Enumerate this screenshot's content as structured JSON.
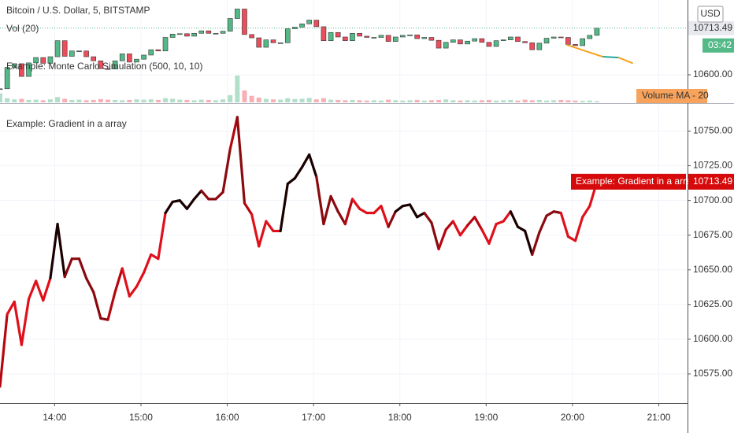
{
  "chart_data": [
    {
      "type": "candlestick",
      "title": "Bitcoin / U.S. Dollar, 5, BITSTAMP",
      "indicators": [
        "Vol (20)",
        "Example: Monte Carlo Simulation (500, 10, 10)"
      ],
      "volume_ma_label": "Volume MA - 20",
      "currency": "USD",
      "countdown": "03:42",
      "up_color": "#53b987",
      "down_color": "#eb4d5c",
      "close": [
        10566,
        10618,
        10627,
        10596,
        10629,
        10642,
        10628,
        10644,
        10683,
        10645,
        10658,
        10658,
        10644,
        10634,
        10615,
        10614,
        10634,
        10651,
        10631,
        10638,
        10648,
        10661,
        10658,
        10691,
        10699,
        10700,
        10694,
        10701,
        10707,
        10701,
        10701,
        10706,
        10737,
        10760,
        10698,
        10690,
        10667,
        10685,
        10678,
        10678,
        10712,
        10716,
        10724,
        10733,
        10717,
        10683,
        10703,
        10692,
        10683,
        10701,
        10694,
        10691,
        10691,
        10696,
        10681,
        10692,
        10696,
        10697,
        10688,
        10691,
        10684,
        10665,
        10679,
        10685,
        10675,
        10682,
        10688,
        10679,
        10669,
        10683,
        10685,
        10692,
        10681,
        10678,
        10661,
        10677,
        10689,
        10692,
        10691,
        10674,
        10671,
        10688,
        10696,
        10713.49
      ],
      "volume": [
        30,
        14,
        10,
        12,
        8,
        9,
        7,
        10,
        18,
        12,
        8,
        9,
        7,
        8,
        11,
        9,
        8,
        7,
        8,
        10,
        9,
        10,
        8,
        14,
        12,
        9,
        8,
        7,
        9,
        8,
        7,
        10,
        24,
        90,
        40,
        22,
        16,
        12,
        10,
        9,
        14,
        11,
        12,
        15,
        10,
        14,
        9,
        8,
        7,
        8,
        7,
        6,
        7,
        6,
        9,
        7,
        6,
        7,
        8,
        6,
        7,
        8,
        10,
        7,
        6,
        7,
        6,
        7,
        8,
        6,
        7,
        8,
        6,
        9,
        7,
        8,
        6,
        7,
        8,
        7,
        6,
        5,
        6,
        4
      ],
      "projection": {
        "x": [
          1196,
          1221,
          1232,
          1242
        ],
        "values": [
          10673,
          10644,
          10642,
          10628
        ],
        "colors": [
          "#f7a21b",
          "#26a69a",
          "#f7a21b"
        ]
      },
      "ylim": [
        10533,
        10782
      ],
      "yticks": [
        {
          "value": 10600,
          "label": "10600.00"
        }
      ]
    },
    {
      "type": "line",
      "title": "Example: Gradient in a array",
      "x": [
        802,
        807,
        812,
        817,
        822,
        827,
        832,
        837,
        842,
        847,
        852,
        857,
        862,
        867,
        872,
        877,
        882,
        887,
        892,
        897,
        902,
        907,
        912,
        917,
        922,
        927,
        932,
        937,
        942,
        947,
        952,
        957,
        962,
        967,
        972,
        977,
        982,
        987,
        992,
        997,
        1002,
        1007,
        1012,
        1017,
        1022,
        1027,
        1032,
        1037,
        1042,
        1047,
        1052,
        1057,
        1062,
        1067,
        1072,
        1077,
        1082,
        1087,
        1092,
        1097,
        1102,
        1107,
        1112,
        1117,
        1122,
        1127,
        1132,
        1137,
        1142,
        1147,
        1152,
        1157,
        1162,
        1167,
        1172,
        1177,
        1182,
        1187,
        1192,
        1197,
        1202,
        1207,
        1212,
        1217
      ],
      "series": [
        {
          "name": "Example: Gradient in a array",
          "tag_color": "#d60a0a",
          "values": [
            10566,
            10618,
            10627,
            10596,
            10629,
            10642,
            10628,
            10644,
            10683,
            10645,
            10658,
            10658,
            10644,
            10634,
            10615,
            10614,
            10634,
            10651,
            10631,
            10638,
            10648,
            10661,
            10658,
            10691,
            10699,
            10700,
            10694,
            10701,
            10707,
            10701,
            10701,
            10706,
            10737,
            10760,
            10698,
            10690,
            10667,
            10685,
            10678,
            10678,
            10712,
            10716,
            10724,
            10733,
            10717,
            10683,
            10703,
            10692,
            10683,
            10701,
            10694,
            10691,
            10691,
            10696,
            10681,
            10692,
            10696,
            10697,
            10688,
            10691,
            10684,
            10665,
            10679,
            10685,
            10675,
            10682,
            10688,
            10679,
            10669,
            10683,
            10685,
            10692,
            10681,
            10678,
            10661,
            10677,
            10689,
            10692,
            10691,
            10674,
            10671,
            10688,
            10696,
            10713.49
          ],
          "colors": [
            "#8a0a10",
            "#b5070f",
            "#e0101a",
            "#e0101a",
            "#e0101a",
            "#e0101a",
            "#e0101a",
            "#e0101a",
            "#1a0000",
            "#1a0000",
            "#8a0a10",
            "#8a0a10",
            "#8a0a10",
            "#8a0a10",
            "#8a0a10",
            "#8a0a10",
            "#b5070f",
            "#b5070f",
            "#e0101a",
            "#e0101a",
            "#e0101a",
            "#e0101a",
            "#e0101a",
            "#e0101a",
            "#1a0000",
            "#1a0000",
            "#1a0000",
            "#1a0000",
            "#1a0000",
            "#8a0a10",
            "#8a0a10",
            "#8a0a10",
            "#8a0a10",
            "#b5070f",
            "#8a0a10",
            "#b5070f",
            "#e0101a",
            "#e0101a",
            "#e0101a",
            "#e0101a",
            "#1a0000",
            "#1a0000",
            "#1a0000",
            "#1a0000",
            "#1a0000",
            "#8a0a10",
            "#8a0a10",
            "#8a0a10",
            "#8a0a10",
            "#b5070f",
            "#e0101a",
            "#e0101a",
            "#e0101a",
            "#e0101a",
            "#e0101a",
            "#8a0a10",
            "#1a0000",
            "#1a0000",
            "#1a0000",
            "#1a0000",
            "#8a0a10",
            "#8a0a10",
            "#b5070f",
            "#b5070f",
            "#e0101a",
            "#e0101a",
            "#b5070f",
            "#b5070f",
            "#e0101a",
            "#e0101a",
            "#e0101a",
            "#e0101a",
            "#1a0000",
            "#1a0000",
            "#1a0000",
            "#8a0a10",
            "#8a0a10",
            "#8a0a10",
            "#8a0a10",
            "#e0101a",
            "#e0101a",
            "#e0101a",
            "#e0101a",
            "#e0101a"
          ]
        }
      ],
      "xlim": [
        802,
        1280
      ],
      "xticks": [
        {
          "value": 840,
          "label": "14:00"
        },
        {
          "value": 900,
          "label": "15:00"
        },
        {
          "value": 960,
          "label": "16:00"
        },
        {
          "value": 1020,
          "label": "17:00"
        },
        {
          "value": 1080,
          "label": "18:00"
        },
        {
          "value": 1140,
          "label": "19:00"
        },
        {
          "value": 1200,
          "label": "20:00"
        },
        {
          "value": 1260,
          "label": "21:00"
        }
      ],
      "ylim": [
        10554,
        10769
      ],
      "yticks": [
        {
          "value": 10575,
          "label": "10575.00"
        },
        {
          "value": 10600,
          "label": "10600.00"
        },
        {
          "value": 10625,
          "label": "10625.00"
        },
        {
          "value": 10650,
          "label": "10650.00"
        },
        {
          "value": 10675,
          "label": "10675.00"
        },
        {
          "value": 10700,
          "label": "10700.00"
        },
        {
          "value": 10725,
          "label": "10725.00"
        },
        {
          "value": 10750,
          "label": "10750.00"
        }
      ],
      "grid": true
    }
  ]
}
